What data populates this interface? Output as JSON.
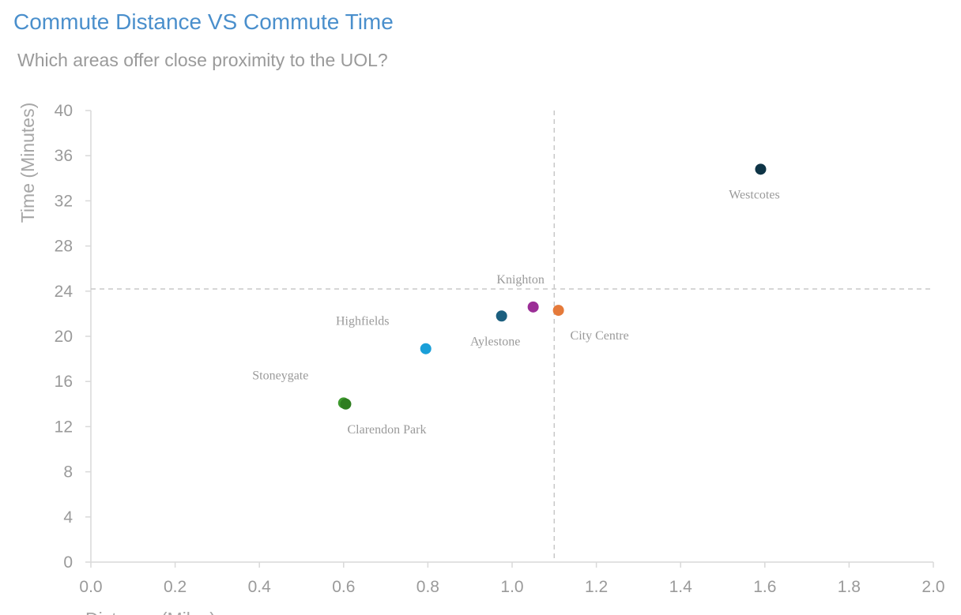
{
  "chart_data": {
    "type": "scatter",
    "title": "Commute Distance VS Commute Time",
    "subtitle": "Which areas offer close proximity to the UOL?",
    "xlabel": "Distance (Miles)",
    "ylabel": "Time (Minutes)",
    "xlim": [
      0,
      2
    ],
    "ylim": [
      0,
      40
    ],
    "xticks": [
      "0.0",
      "0.2",
      "0.4",
      "0.6",
      "0.8",
      "1.0",
      "1.2",
      "1.4",
      "1.6",
      "1.8",
      "2.0"
    ],
    "yticks": [
      "0",
      "4",
      "8",
      "12",
      "16",
      "20",
      "24",
      "28",
      "32",
      "36",
      "40"
    ],
    "grid": false,
    "points": [
      {
        "label": "Stoneygate",
        "x": 0.6,
        "y": 14.1,
        "color": "#3e9a2e",
        "label_pos": "upper-left"
      },
      {
        "label": "Clarendon Park",
        "x": 0.605,
        "y": 14.0,
        "color": "#2e7d1f",
        "label_pos": "lower-right"
      },
      {
        "label": "Highfields",
        "x": 0.795,
        "y": 18.9,
        "color": "#1a9fd8",
        "label_pos": "upper-left"
      },
      {
        "label": "Aylestone",
        "x": 0.975,
        "y": 21.8,
        "color": "#1c5f7f",
        "label_pos": "below"
      },
      {
        "label": "Knighton",
        "x": 1.05,
        "y": 22.6,
        "color": "#9b2e96",
        "label_pos": "above"
      },
      {
        "label": "City Centre",
        "x": 1.11,
        "y": 22.3,
        "color": "#e57a3a",
        "label_pos": "lower-right"
      },
      {
        "label": "Westcotes",
        "x": 1.59,
        "y": 34.8,
        "color": "#0e3446",
        "label_pos": "below"
      }
    ],
    "reference_lines": [
      {
        "axis": "x",
        "value": 1.1,
        "style": "dashed"
      },
      {
        "axis": "y",
        "value": 24.2,
        "style": "dashed"
      }
    ]
  }
}
